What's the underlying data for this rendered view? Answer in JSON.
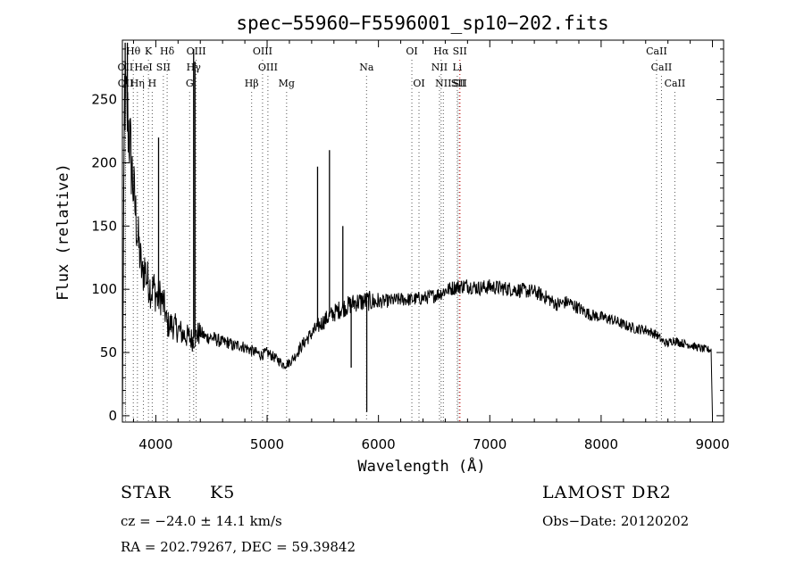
{
  "chart_data": {
    "type": "line",
    "title": "spec−55960−F5596001_sp10−202.fits",
    "xlabel": "Wavelength (Å)",
    "ylabel": "Flux (relative)",
    "xlim": [
      3700,
      9100
    ],
    "ylim": [
      -5,
      297
    ],
    "xticks": [
      4000,
      5000,
      6000,
      7000,
      8000,
      9000
    ],
    "yticks": [
      0,
      50,
      100,
      150,
      200,
      250
    ],
    "grid": false,
    "series": [
      {
        "x": [
          3700,
          3720,
          3740,
          3760,
          3780,
          3800,
          3820,
          3840,
          3860,
          3880,
          3900,
          3920,
          3940,
          3960,
          3980,
          4000,
          4020,
          4040,
          4060,
          4080,
          4100,
          4150,
          4200,
          4250,
          4300,
          4330,
          4350,
          4370,
          4400,
          4450,
          4500,
          4550,
          4600,
          4650,
          4700,
          4750,
          4800,
          4850,
          4900,
          4950,
          5000,
          5050,
          5100,
          5150,
          5200,
          5250,
          5300,
          5350,
          5400,
          5450,
          5500,
          5550,
          5600,
          5650,
          5700,
          5750,
          5800,
          5850,
          5900,
          5950,
          6000,
          6100,
          6200,
          6300,
          6400,
          6500,
          6560,
          6600,
          6700,
          6800,
          6900,
          7000,
          7100,
          7200,
          7300,
          7400,
          7500,
          7600,
          7700,
          7800,
          7900,
          8000,
          8100,
          8200,
          8300,
          8400,
          8500,
          8550,
          8600,
          8650,
          8700,
          8800,
          8900,
          8990,
          9000
        ],
        "y": [
          0,
          255,
          240,
          225,
          200,
          178,
          158,
          140,
          125,
          110,
          118,
          108,
          105,
          98,
          102,
          96,
          92,
          95,
          90,
          85,
          72,
          72,
          68,
          64,
          62,
          60,
          62,
          64,
          66,
          62,
          62,
          60,
          58,
          58,
          55,
          56,
          54,
          52,
          50,
          48,
          50,
          47,
          44,
          40,
          42,
          47,
          54,
          60,
          65,
          70,
          74,
          78,
          81,
          84,
          86,
          88,
          90,
          90,
          91,
          90,
          90,
          91,
          92,
          92,
          93,
          95,
          97,
          99,
          102,
          103,
          101,
          102,
          101,
          100,
          99,
          98,
          94,
          88,
          90,
          85,
          80,
          78,
          76,
          72,
          69,
          68,
          64,
          59,
          57,
          60,
          58,
          56,
          53,
          52,
          0
        ]
      }
    ],
    "spikes": [
      {
        "x": 3725,
        "top": 295
      },
      {
        "x": 3745,
        "top": 295
      },
      {
        "x": 4025,
        "top": 220
      },
      {
        "x": 4340,
        "top": 290
      },
      {
        "x": 4352,
        "top": 280
      },
      {
        "x": 5453,
        "top": 197
      },
      {
        "x": 5560,
        "top": 210
      },
      {
        "x": 5680,
        "top": 150
      },
      {
        "x": 5755,
        "top": 38
      },
      {
        "x": 5895,
        "top": 3
      }
    ],
    "lines_black": [
      {
        "label": "Hθ",
        "x": 3798,
        "row": 0
      },
      {
        "label": "K",
        "x": 3934,
        "row": 0
      },
      {
        "label": "Hδ",
        "x": 4102,
        "row": 0
      },
      {
        "label": "OIII",
        "x": 4363,
        "row": 0
      },
      {
        "label": "OIII",
        "x": 4959,
        "row": 0
      },
      {
        "label": "OI",
        "x": 6300,
        "row": 0
      },
      {
        "label": "Hα",
        "x": 6563,
        "row": 0
      },
      {
        "label": "CaII",
        "x": 8498,
        "row": 0
      },
      {
        "label": "OII",
        "x": 3727,
        "row": 1
      },
      {
        "label": "HeI",
        "x": 3889,
        "row": 1
      },
      {
        "label": "SII",
        "x": 4068,
        "row": 1
      },
      {
        "label": "Hγ",
        "x": 4340,
        "row": 1
      },
      {
        "label": "OIII",
        "x": 5007,
        "row": 1
      },
      {
        "label": "Na",
        "x": 5893,
        "row": 1
      },
      {
        "label": "NII",
        "x": 6548,
        "row": 1
      },
      {
        "label": "Li",
        "x": 6708,
        "row": 1
      },
      {
        "label": "CaII",
        "x": 8542,
        "row": 1
      },
      {
        "label": "OII",
        "x": 3729,
        "row": 2
      },
      {
        "label": "Hη",
        "x": 3835,
        "row": 2
      },
      {
        "label": "H",
        "x": 3968,
        "row": 2
      },
      {
        "label": "G",
        "x": 4304,
        "row": 2
      },
      {
        "label": "Hβ",
        "x": 4861,
        "row": 2
      },
      {
        "label": "Mg",
        "x": 5175,
        "row": 2
      },
      {
        "label": "OI",
        "x": 6364,
        "row": 2
      },
      {
        "label": "NII",
        "x": 6583,
        "row": 2
      },
      {
        "label": "SII",
        "x": 6716,
        "row": 2
      },
      {
        "label": "CaII",
        "x": 8662,
        "row": 2
      }
    ],
    "lines_red": [
      {
        "label": "SII",
        "x": 6731,
        "row": 0
      },
      {
        "label": "SII",
        "x": 6731,
        "row": 2
      }
    ]
  },
  "info": {
    "object_class": "STAR",
    "subclass": "K5",
    "survey": "LAMOST DR2",
    "cz": "cz = −24.0 ± 14.1 km/s",
    "obs_date": "Obs−Date: 20120202",
    "coords": "RA = 202.79267, DEC =  59.39842"
  },
  "colors": {
    "spectrum": "#000000",
    "marker_black": "#555555",
    "marker_red": "#c00000"
  }
}
